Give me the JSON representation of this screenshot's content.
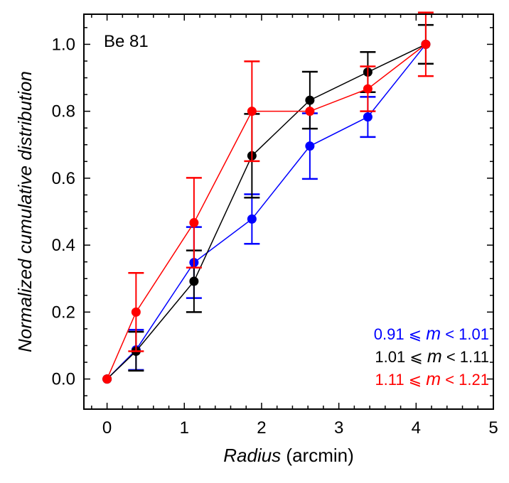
{
  "chart_data": {
    "type": "line",
    "title": "",
    "annotation": "Be 81",
    "xlabel_italic": "Radius",
    "xlabel_rest": " (arcmin)",
    "ylabel": "Normalized cumulative distribution",
    "xlim": [
      -0.3,
      5.0
    ],
    "ylim": [
      -0.09,
      1.09
    ],
    "xticks": [
      0,
      1,
      2,
      3,
      4,
      5
    ],
    "xtick_labels": [
      "0",
      "1",
      "2",
      "3",
      "4",
      "5"
    ],
    "yticks": [
      0.0,
      0.2,
      0.4,
      0.6,
      0.8,
      1.0
    ],
    "ytick_labels": [
      "0.0",
      "0.2",
      "0.4",
      "0.6",
      "0.8",
      "1.0"
    ],
    "x_minor_step": 0.2,
    "y_minor_step": 0.05,
    "legend_position": "bottom-right",
    "series": [
      {
        "name": "0.91 ≤ m < 1.01",
        "legend_pre": "0.91 ⩽ ",
        "legend_var": "m",
        "legend_post": " < 1.01",
        "color": "#0000ff",
        "x": [
          0,
          0.375,
          1.125,
          1.875,
          2.625,
          3.375,
          4.125
        ],
        "y": [
          0.0,
          0.087,
          0.348,
          0.478,
          0.696,
          0.783,
          1.0
        ],
        "err": [
          0.0,
          0.06,
          0.106,
          0.074,
          0.098,
          0.06,
          0.0
        ]
      },
      {
        "name": "1.01 ≤ m < 1.11",
        "legend_pre": "1.01 ⩽ ",
        "legend_var": "m",
        "legend_post": " < 1.11",
        "color": "#000000",
        "x": [
          0,
          0.375,
          1.125,
          1.875,
          2.625,
          3.375,
          4.125
        ],
        "y": [
          0.0,
          0.083,
          0.292,
          0.667,
          0.833,
          0.917,
          1.0
        ],
        "err": [
          0.0,
          0.058,
          0.092,
          0.125,
          0.085,
          0.06,
          0.058
        ]
      },
      {
        "name": "1.11 ≤ m < 1.21",
        "legend_pre": "1.11 ⩽ ",
        "legend_var": "m",
        "legend_post": " < 1.21",
        "color": "#ff0000",
        "x": [
          0,
          0.375,
          1.125,
          1.875,
          2.625,
          3.375,
          4.125
        ],
        "y": [
          0.0,
          0.2,
          0.467,
          0.8,
          0.8,
          0.867,
          1.0
        ],
        "err": [
          0.0,
          0.117,
          0.134,
          0.149,
          0.0,
          0.067,
          0.095
        ]
      }
    ]
  }
}
